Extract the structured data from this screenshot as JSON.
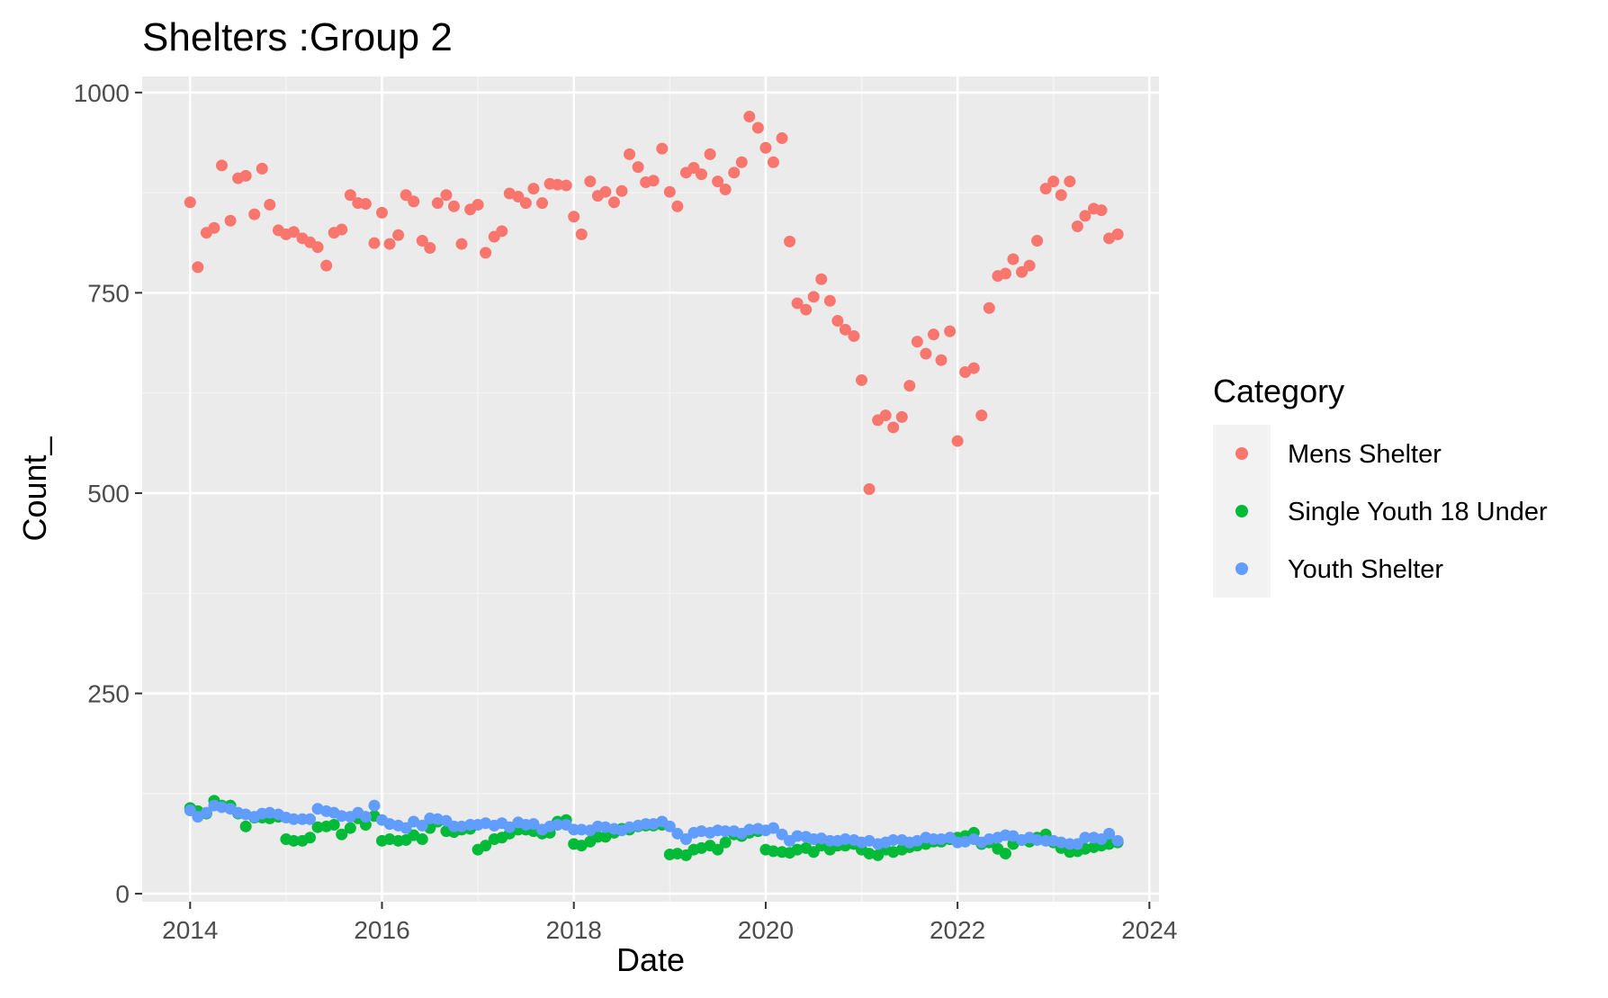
{
  "chart_data": {
    "type": "scatter",
    "title": "Shelters :Group 2",
    "xlabel": "Date",
    "ylabel": "Count_",
    "xlim": [
      2013.5,
      2024.1
    ],
    "ylim": [
      -10,
      1020
    ],
    "x_ticks": [
      2014,
      2016,
      2018,
      2020,
      2022,
      2024
    ],
    "x_tick_labels": [
      "2014",
      "2016",
      "2018",
      "2020",
      "2022",
      "2024"
    ],
    "y_ticks": [
      0,
      250,
      500,
      750,
      1000
    ],
    "y_tick_labels": [
      "0",
      "250",
      "500",
      "750",
      "1000"
    ],
    "grid": true,
    "legend": {
      "title": "Category",
      "position": "right"
    },
    "colors": {
      "panel_background": "#EBEBEB",
      "grid_major": "#FFFFFF",
      "grid_minor": "#F5F5F5",
      "legend_key_background": "#F2F2F2",
      "axis_text": "#4D4D4D",
      "tick": "#333333"
    },
    "series": [
      {
        "name": "Mens Shelter",
        "color": "#F8766D",
        "x": [
          2014.0,
          2014.08,
          2014.17,
          2014.25,
          2014.33,
          2014.42,
          2014.5,
          2014.58,
          2014.67,
          2014.75,
          2014.83,
          2014.92,
          2015.0,
          2015.08,
          2015.17,
          2015.25,
          2015.33,
          2015.42,
          2015.5,
          2015.58,
          2015.67,
          2015.75,
          2015.83,
          2015.92,
          2016.0,
          2016.08,
          2016.17,
          2016.25,
          2016.33,
          2016.42,
          2016.5,
          2016.58,
          2016.67,
          2016.75,
          2016.83,
          2016.92,
          2017.0,
          2017.08,
          2017.17,
          2017.25,
          2017.33,
          2017.42,
          2017.5,
          2017.58,
          2017.67,
          2017.75,
          2017.83,
          2017.92,
          2018.0,
          2018.08,
          2018.17,
          2018.25,
          2018.33,
          2018.42,
          2018.5,
          2018.58,
          2018.67,
          2018.75,
          2018.83,
          2018.92,
          2019.0,
          2019.08,
          2019.17,
          2019.25,
          2019.33,
          2019.42,
          2019.5,
          2019.58,
          2019.67,
          2019.75,
          2019.83,
          2019.92,
          2020.0,
          2020.08,
          2020.17,
          2020.25,
          2020.33,
          2020.42,
          2020.5,
          2020.58,
          2020.67,
          2020.75,
          2020.83,
          2020.92,
          2021.0,
          2021.08,
          2021.17,
          2021.25,
          2021.33,
          2021.42,
          2021.5,
          2021.58,
          2021.67,
          2021.75,
          2021.83,
          2021.92,
          2022.0,
          2022.08,
          2022.17,
          2022.25,
          2022.33,
          2022.42,
          2022.5,
          2022.58,
          2022.67,
          2022.75,
          2022.83,
          2022.92,
          2023.0,
          2023.08,
          2023.17,
          2023.25,
          2023.33,
          2023.42,
          2023.5,
          2023.58,
          2023.67
        ],
        "y": [
          863,
          782,
          825,
          831,
          909,
          840,
          893,
          896,
          848,
          905,
          860,
          828,
          823,
          826,
          818,
          813,
          807,
          784,
          825,
          829,
          872,
          862,
          861,
          812,
          850,
          811,
          822,
          872,
          864,
          815,
          806,
          862,
          872,
          858,
          811,
          854,
          860,
          800,
          820,
          827,
          874,
          870,
          862,
          880,
          862,
          886,
          885,
          884,
          845,
          823,
          889,
          871,
          876,
          863,
          877,
          923,
          907,
          888,
          890,
          930,
          876,
          858,
          900,
          906,
          898,
          923,
          889,
          879,
          900,
          913,
          970,
          956,
          931,
          913,
          943,
          814,
          737,
          729,
          745,
          767,
          740,
          715,
          704,
          696,
          641,
          505,
          591,
          597,
          582,
          595,
          634,
          689,
          674,
          698,
          666,
          702,
          565,
          651,
          656,
          597,
          731,
          771,
          774,
          792,
          776,
          784,
          815,
          880,
          889,
          872,
          889,
          833,
          846,
          855,
          853,
          818,
          823
        ]
      },
      {
        "name": "Single Youth 18 Under",
        "color": "#00BA38",
        "x": [
          2014.0,
          2014.08,
          2014.17,
          2014.25,
          2014.33,
          2014.42,
          2014.5,
          2014.58,
          2014.67,
          2014.75,
          2014.83,
          2014.92,
          2015.0,
          2015.08,
          2015.17,
          2015.25,
          2015.33,
          2015.42,
          2015.5,
          2015.58,
          2015.67,
          2015.75,
          2015.83,
          2015.92,
          2016.0,
          2016.08,
          2016.17,
          2016.25,
          2016.33,
          2016.42,
          2016.5,
          2016.58,
          2016.67,
          2016.75,
          2016.83,
          2016.92,
          2017.0,
          2017.08,
          2017.17,
          2017.25,
          2017.33,
          2017.42,
          2017.5,
          2017.58,
          2017.67,
          2017.75,
          2017.83,
          2017.92,
          2018.0,
          2018.08,
          2018.17,
          2018.25,
          2018.33,
          2018.42,
          2018.5,
          2018.58,
          2018.67,
          2018.75,
          2018.83,
          2018.92,
          2019.0,
          2019.08,
          2019.17,
          2019.25,
          2019.33,
          2019.42,
          2019.5,
          2019.58,
          2019.67,
          2019.75,
          2019.83,
          2019.92,
          2020.0,
          2020.08,
          2020.17,
          2020.25,
          2020.33,
          2020.42,
          2020.5,
          2020.58,
          2020.67,
          2020.75,
          2020.83,
          2020.92,
          2021.0,
          2021.08,
          2021.17,
          2021.25,
          2021.33,
          2021.42,
          2021.5,
          2021.58,
          2021.67,
          2021.75,
          2021.83,
          2021.92,
          2022.0,
          2022.08,
          2022.17,
          2022.25,
          2022.33,
          2022.42,
          2022.5,
          2022.58,
          2022.67,
          2022.75,
          2022.83,
          2022.92,
          2023.0,
          2023.08,
          2023.17,
          2023.25,
          2023.33,
          2023.42,
          2023.5,
          2023.58,
          2023.67
        ],
        "y": [
          107,
          103,
          100,
          116,
          110,
          110,
          100,
          84,
          95,
          95,
          94,
          96,
          68,
          66,
          66,
          70,
          83,
          84,
          86,
          74,
          82,
          94,
          86,
          97,
          66,
          68,
          66,
          67,
          73,
          68,
          82,
          90,
          78,
          77,
          80,
          81,
          55,
          60,
          68,
          70,
          75,
          80,
          80,
          78,
          75,
          76,
          90,
          92,
          62,
          60,
          65,
          71,
          71,
          76,
          81,
          80,
          84,
          85,
          85,
          86,
          49,
          50,
          48,
          55,
          57,
          60,
          55,
          64,
          74,
          72,
          76,
          78,
          55,
          53,
          52,
          51,
          55,
          57,
          52,
          60,
          55,
          60,
          60,
          62,
          55,
          50,
          48,
          55,
          52,
          55,
          58,
          60,
          62,
          65,
          65,
          68,
          70,
          72,
          76,
          62,
          64,
          56,
          50,
          62,
          67,
          65,
          70,
          74,
          64,
          57,
          52,
          53,
          56,
          58,
          60,
          62,
          64
        ]
      },
      {
        "name": "Youth Shelter",
        "color": "#619CFF",
        "x": [
          2014.0,
          2014.08,
          2014.17,
          2014.25,
          2014.33,
          2014.42,
          2014.5,
          2014.58,
          2014.67,
          2014.75,
          2014.83,
          2014.92,
          2015.0,
          2015.08,
          2015.17,
          2015.25,
          2015.33,
          2015.42,
          2015.5,
          2015.58,
          2015.67,
          2015.75,
          2015.83,
          2015.92,
          2016.0,
          2016.08,
          2016.17,
          2016.25,
          2016.33,
          2016.42,
          2016.5,
          2016.58,
          2016.67,
          2016.75,
          2016.83,
          2016.92,
          2017.0,
          2017.08,
          2017.17,
          2017.25,
          2017.33,
          2017.42,
          2017.5,
          2017.58,
          2017.67,
          2017.75,
          2017.83,
          2017.92,
          2018.0,
          2018.08,
          2018.17,
          2018.25,
          2018.33,
          2018.42,
          2018.5,
          2018.58,
          2018.67,
          2018.75,
          2018.83,
          2018.92,
          2019.0,
          2019.08,
          2019.17,
          2019.25,
          2019.33,
          2019.42,
          2019.5,
          2019.58,
          2019.67,
          2019.75,
          2019.83,
          2019.92,
          2020.0,
          2020.08,
          2020.17,
          2020.25,
          2020.33,
          2020.42,
          2020.5,
          2020.58,
          2020.67,
          2020.75,
          2020.83,
          2020.92,
          2021.0,
          2021.08,
          2021.17,
          2021.25,
          2021.33,
          2021.42,
          2021.5,
          2021.58,
          2021.67,
          2021.75,
          2021.83,
          2021.92,
          2022.0,
          2022.08,
          2022.17,
          2022.25,
          2022.33,
          2022.42,
          2022.5,
          2022.58,
          2022.67,
          2022.75,
          2022.83,
          2022.92,
          2023.0,
          2023.08,
          2023.17,
          2023.25,
          2023.33,
          2023.42,
          2023.5,
          2023.58,
          2023.67
        ],
        "y": [
          104,
          96,
          101,
          110,
          108,
          106,
          101,
          99,
          96,
          100,
          101,
          99,
          95,
          93,
          93,
          93,
          106,
          103,
          101,
          97,
          96,
          101,
          96,
          110,
          92,
          87,
          85,
          82,
          90,
          85,
          94,
          93,
          91,
          84,
          84,
          86,
          86,
          88,
          85,
          88,
          83,
          89,
          86,
          87,
          80,
          84,
          86,
          86,
          80,
          80,
          79,
          84,
          83,
          81,
          79,
          83,
          85,
          87,
          87,
          90,
          84,
          75,
          68,
          76,
          78,
          76,
          79,
          78,
          78,
          75,
          80,
          81,
          79,
          82,
          74,
          66,
          72,
          71,
          68,
          69,
          66,
          66,
          68,
          67,
          64,
          66,
          62,
          64,
          67,
          67,
          64,
          66,
          70,
          68,
          68,
          70,
          64,
          65,
          68,
          64,
          68,
          70,
          73,
          72,
          67,
          70,
          67,
          66,
          66,
          64,
          62,
          62,
          70,
          70,
          68,
          75,
          66
        ]
      }
    ]
  }
}
